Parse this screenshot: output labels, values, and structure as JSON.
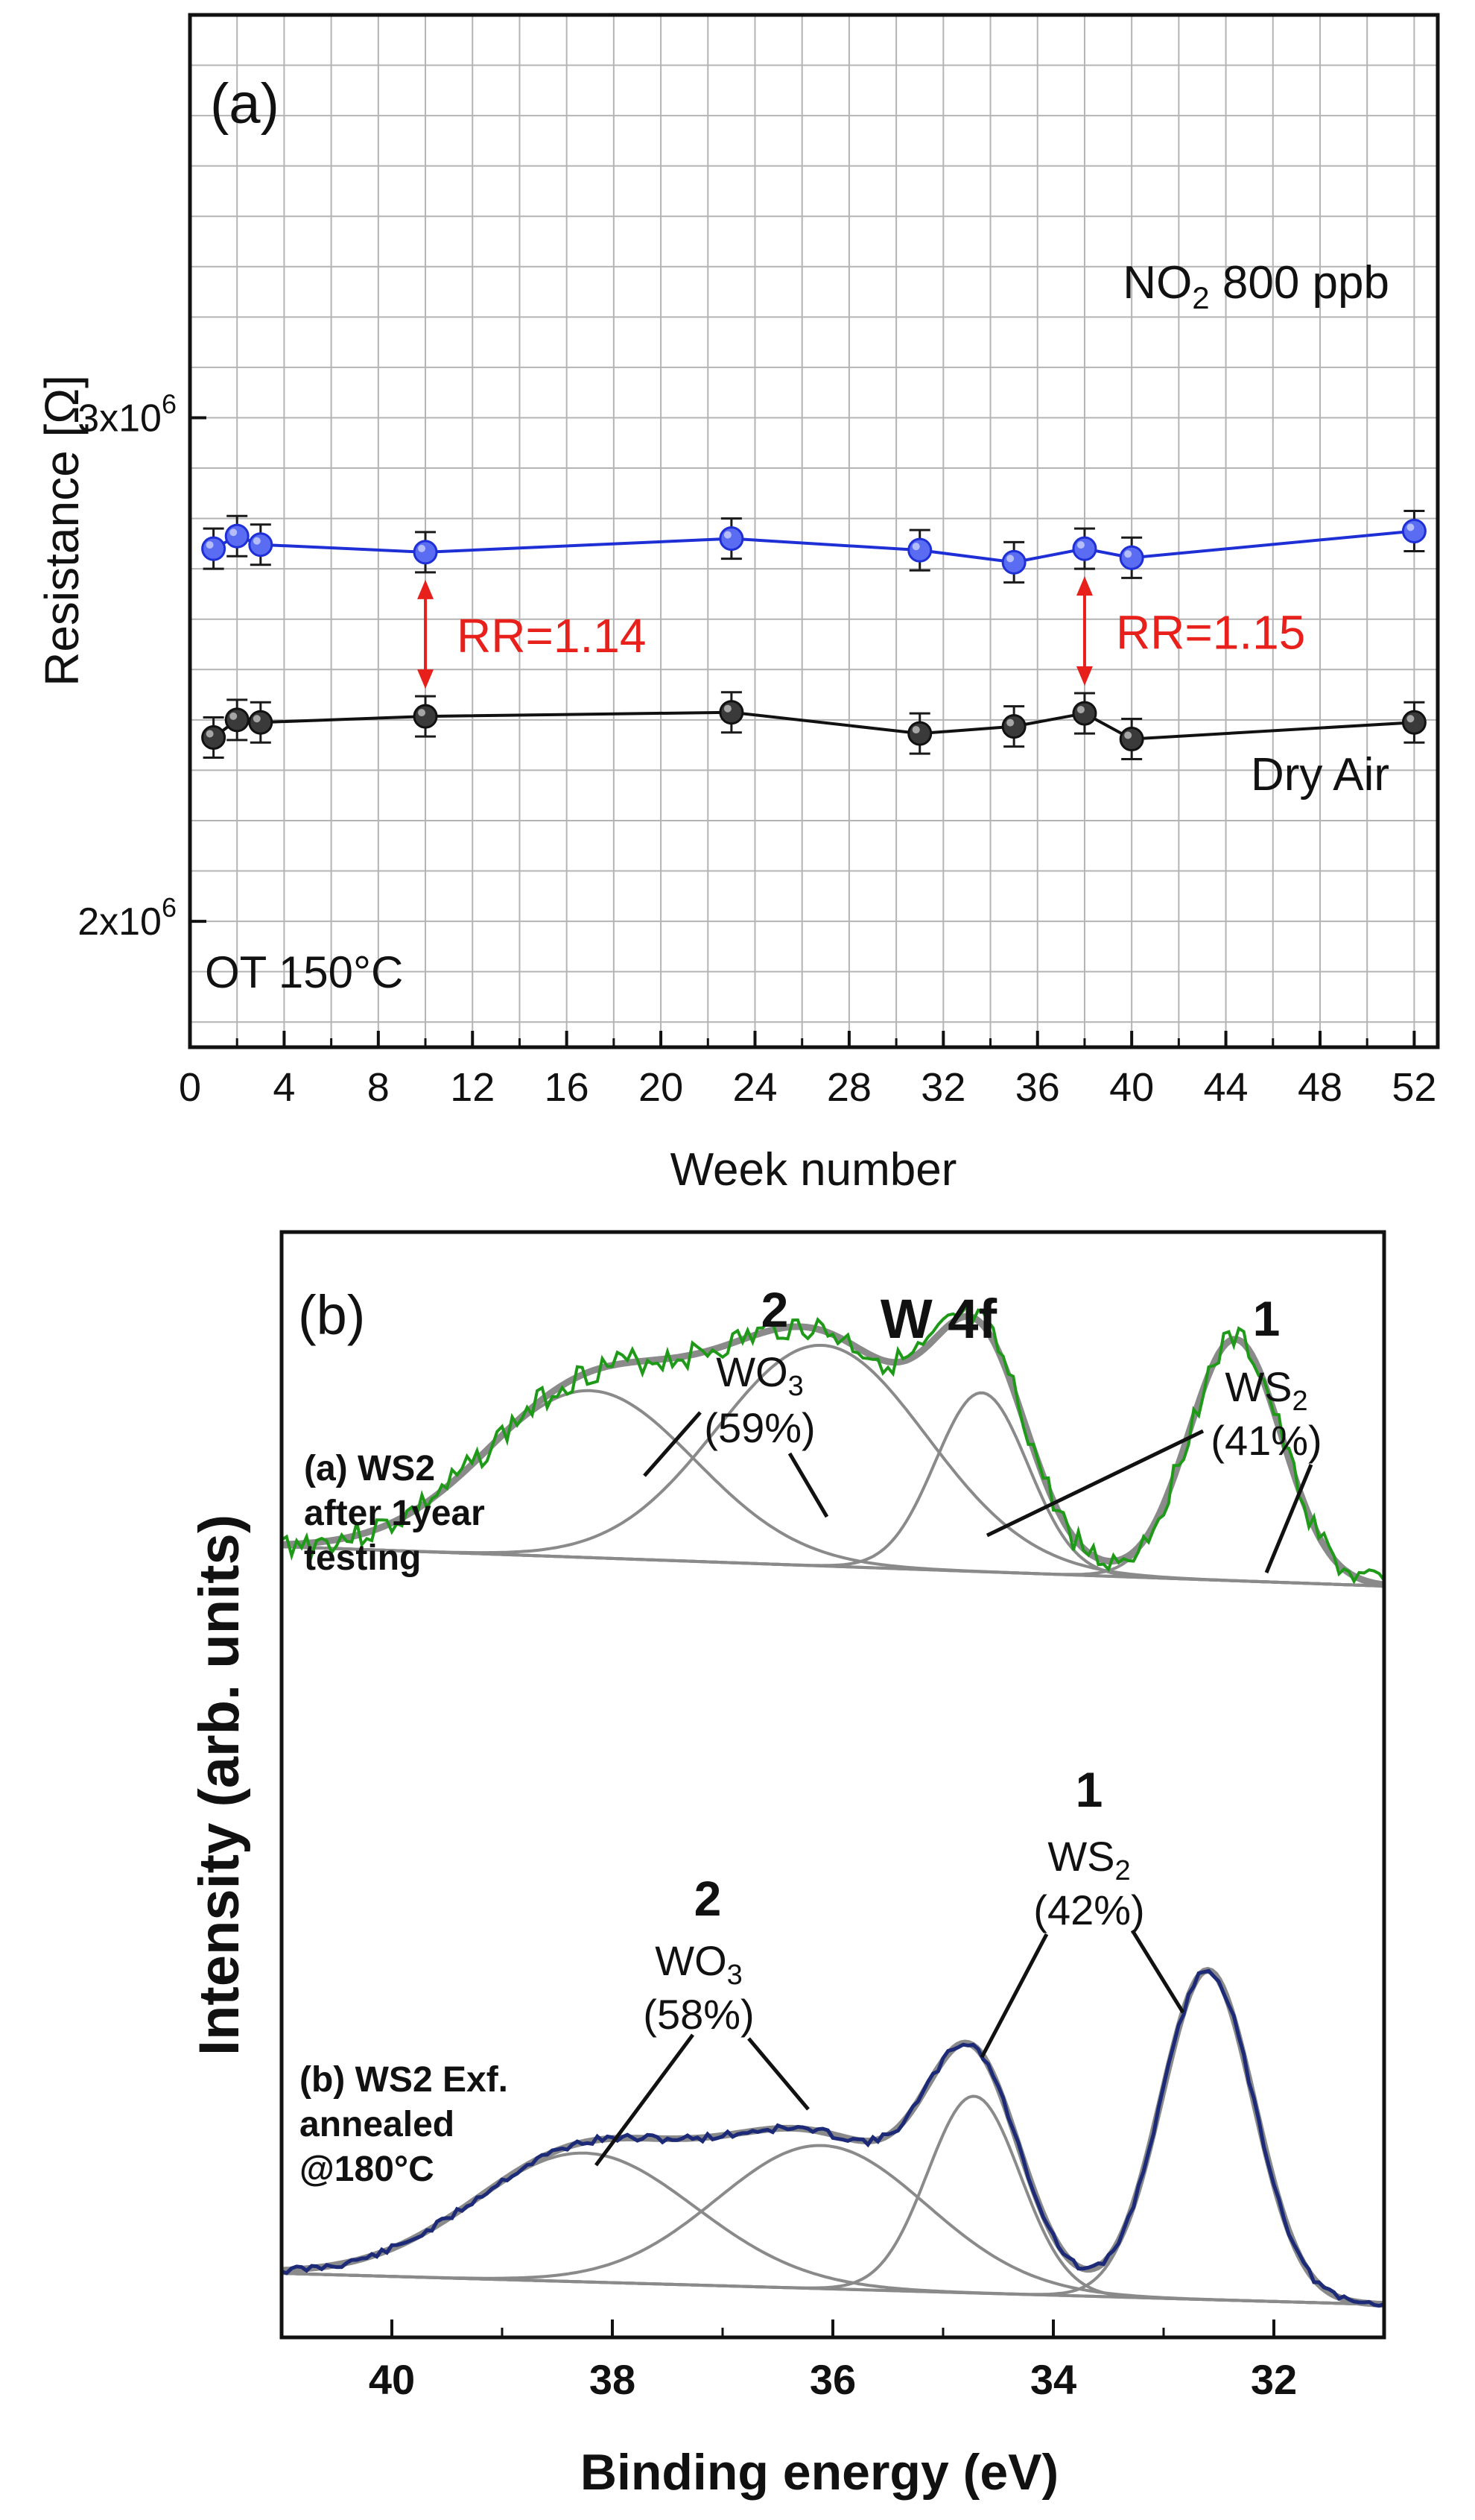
{
  "colors": {
    "no2": "#1f2fd6",
    "no2_fill": "#5a6cf2",
    "dry": "#111111",
    "dry_fill": "#3a3a3a",
    "annotation": "#e8201c",
    "fit": "#8a8a8a",
    "spectrum_a": "#1e9a18",
    "spectrum_b": "#1c2a78",
    "grid": "#b4b4b4"
  },
  "chart_data": [
    {
      "type": "line",
      "panel_label": "(a)",
      "xlabel": "Week number",
      "ylabel": "Resistance [Ω]",
      "xlim": [
        0,
        53
      ],
      "ylim": [
        1750000,
        3800000
      ],
      "xticks": [
        "0",
        "4",
        "8",
        "12",
        "16",
        "20",
        "24",
        "28",
        "32",
        "36",
        "40",
        "44",
        "48",
        "52"
      ],
      "xtick_values": [
        0,
        4,
        8,
        12,
        16,
        20,
        24,
        28,
        32,
        36,
        40,
        44,
        48,
        52
      ],
      "yticks": [
        {
          "value": 2000000,
          "mantissa": "2x10",
          "exp": "6"
        },
        {
          "value": 3000000,
          "mantissa": "3x10",
          "exp": "6"
        }
      ],
      "condition": "OT 150°C",
      "series": [
        {
          "name": "NO2 800 ppb",
          "label_main": "NO",
          "label_sub": "2",
          "label_rest": " 800 ppb",
          "x": [
            1,
            2,
            3,
            10,
            23,
            31,
            35,
            38,
            40,
            52
          ],
          "y": [
            2740000,
            2765000,
            2748000,
            2733000,
            2760000,
            2737000,
            2713000,
            2740000,
            2722000,
            2775000
          ],
          "err": 40000
        },
        {
          "name": "Dry Air",
          "label_main": "Dry Air",
          "x": [
            1,
            2,
            3,
            10,
            23,
            31,
            35,
            38,
            40,
            52
          ],
          "y": [
            2365000,
            2400000,
            2395000,
            2407000,
            2415000,
            2373000,
            2387000,
            2413000,
            2362000,
            2395000
          ],
          "err": 40000
        }
      ],
      "annotations": [
        {
          "text": "RR=1.14",
          "x": 10
        },
        {
          "text": "RR=1.15",
          "x": 38
        }
      ]
    },
    {
      "type": "line",
      "panel_label": "(b)",
      "title": "W 4f",
      "xlabel": "Binding energy (eV)",
      "ylabel": "Intensity (arb. units)",
      "xlim": [
        41,
        31
      ],
      "xticks": [
        "40",
        "38",
        "36",
        "34",
        "32"
      ],
      "xtick_values": [
        40,
        38,
        36,
        34,
        32
      ],
      "spectra": [
        {
          "name": "(a) WS2 after 1year testing",
          "label_lines": [
            "(a) WS2",
            "after 1year",
            "testing"
          ],
          "peak2": {
            "num": "2",
            "species": "WO",
            "sub": "3",
            "pct": "(59%)"
          },
          "peak1": {
            "num": "1",
            "species": "WS",
            "sub": "2",
            "pct": "(41%)"
          },
          "components": [
            {
              "center": 38.2,
              "amp": 0.56,
              "width": 0.95
            },
            {
              "center": 36.1,
              "amp": 0.74,
              "width": 0.95
            },
            {
              "center": 34.65,
              "amp": 0.6,
              "width": 0.42
            },
            {
              "center": 32.35,
              "amp": 0.81,
              "width": 0.42
            }
          ]
        },
        {
          "name": "(b) WS2 Exf. annealed @180°C",
          "label_lines": [
            "(b) WS2 Exf.",
            "annealed",
            "@180°C"
          ],
          "peak2": {
            "num": "2",
            "species": "WO",
            "sub": "3",
            "pct": "(58%)"
          },
          "peak1": {
            "num": "1",
            "species": "WS",
            "sub": "2",
            "pct": "(42%)"
          },
          "components": [
            {
              "center": 38.25,
              "amp": 0.36,
              "width": 1.0
            },
            {
              "center": 36.1,
              "amp": 0.4,
              "width": 0.95
            },
            {
              "center": 34.72,
              "amp": 0.55,
              "width": 0.42
            },
            {
              "center": 32.6,
              "amp": 0.92,
              "width": 0.42
            }
          ]
        }
      ]
    }
  ]
}
